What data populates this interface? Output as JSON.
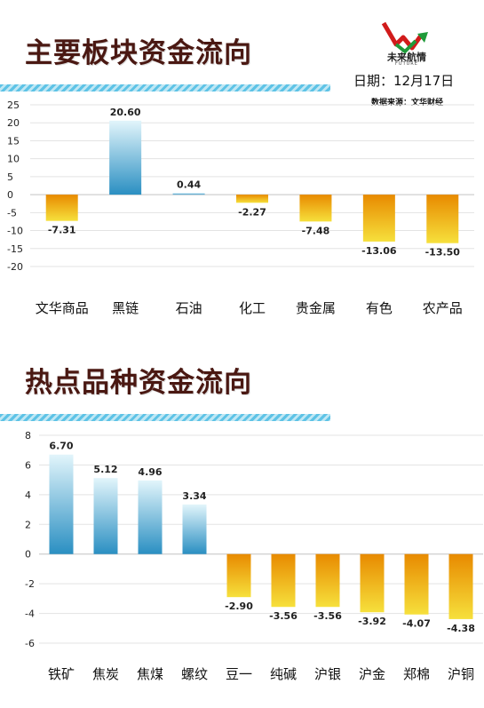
{
  "header": {
    "brand": "未来航情",
    "brand_sub": "FUTURE",
    "date": "日期：12月17日",
    "source": "数据来源：文华财经"
  },
  "colors": {
    "title": "#4a1812",
    "positive_top": "#e2f5fb",
    "positive_bottom": "#2a8fc2",
    "negative_top": "#e88a00",
    "negative_bottom": "#f6e03c",
    "grid": "#e3e3e3"
  },
  "chart_data": [
    {
      "type": "bar",
      "title": "主要板块资金流向",
      "categories": [
        "文华商品",
        "黑链",
        "石油",
        "化工",
        "贵金属",
        "有色",
        "农产品"
      ],
      "values": [
        -7.31,
        20.6,
        0.44,
        -2.27,
        -7.48,
        -13.06,
        -13.5
      ],
      "value_labels": [
        "-7.31",
        "20.60",
        "0.44",
        "-2.27",
        "-7.48",
        "-13.06",
        "-13.50"
      ],
      "yticks": [
        "25",
        "20",
        "15",
        "10",
        "5",
        "0",
        "-5",
        "-10",
        "-15",
        "-20"
      ],
      "ylim": [
        -20,
        25
      ],
      "ystep": 5,
      "grid": true,
      "legend": "none"
    },
    {
      "type": "bar",
      "title": "热点品种资金流向",
      "categories": [
        "铁矿",
        "焦炭",
        "焦煤",
        "螺纹",
        "豆一",
        "纯碱",
        "沪银",
        "沪金",
        "郑棉",
        "沪铜"
      ],
      "values": [
        6.7,
        5.12,
        4.96,
        3.34,
        -2.9,
        -3.56,
        -3.56,
        -3.92,
        -4.07,
        -4.38
      ],
      "value_labels": [
        "6.70",
        "5.12",
        "4.96",
        "3.34",
        "-2.90",
        "-3.56",
        "-3.56",
        "-3.92",
        "-4.07",
        "-4.38"
      ],
      "yticks": [
        "8",
        "6",
        "4",
        "2",
        "0",
        "-2",
        "-4",
        "-6"
      ],
      "ylim": [
        -6,
        8
      ],
      "ystep": 2,
      "grid": true,
      "legend": "none"
    }
  ]
}
